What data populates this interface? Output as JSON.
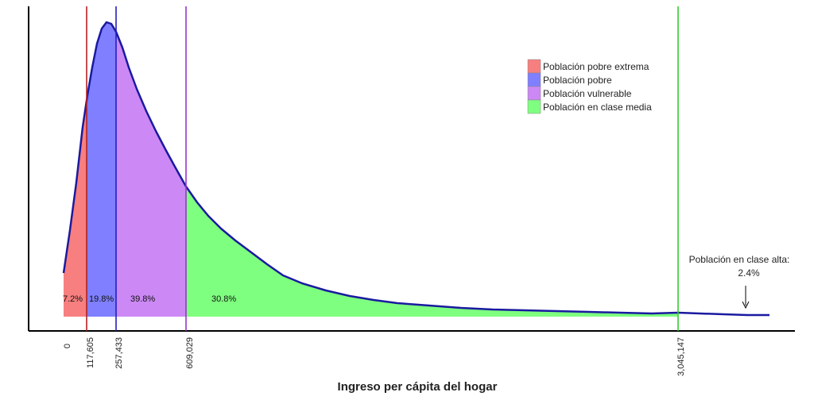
{
  "chart_data": {
    "type": "area",
    "title": "",
    "xlabel": "Ingreso per cápita del hogar",
    "ylabel": "",
    "grid": false,
    "legend_position": "top-right",
    "x_ticks": [
      "0",
      "117,605",
      "257,433",
      "609,029",
      "3,045,147"
    ],
    "thresholds": [
      {
        "value": "117,605",
        "color": "#b22222"
      },
      {
        "value": "257,433",
        "color": "#2020c0"
      },
      {
        "value": "609,029",
        "color": "#9933cc"
      },
      {
        "value": "3,045,147",
        "color": "#33cc33"
      }
    ],
    "series": [
      {
        "name": "Población pobre extrema",
        "color": "#f77f7f",
        "share": "7.2%"
      },
      {
        "name": "Población pobre",
        "color": "#7f7fff",
        "share": "19.8%"
      },
      {
        "name": "Población vulnerable",
        "color": "#cc88f5",
        "share": "39.8%"
      },
      {
        "name": "Población en clase media",
        "color": "#7fff7f",
        "share": "30.8%"
      }
    ],
    "annotation": {
      "line1": "Población en clase alta:",
      "line2": "2.4%"
    },
    "density_curve_color": "#1a1aa0"
  }
}
